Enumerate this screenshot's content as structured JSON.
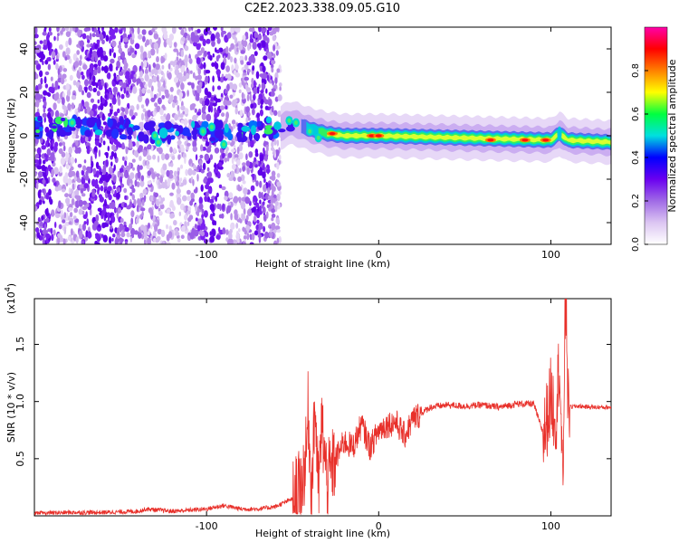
{
  "title": "C2E2.2023.338.09.05.G10",
  "chart_data": [
    {
      "type": "heatmap",
      "xlabel": "Height of straight line (km)",
      "ylabel": "Frequency (Hz)",
      "xlim": [
        -200,
        135
      ],
      "ylim": [
        -50,
        50
      ],
      "xticks": [
        -100,
        0,
        100
      ],
      "yticks": [
        -40,
        -20,
        0,
        20,
        40
      ],
      "colorbar": {
        "label": "Normalized spectral amplitude",
        "range": [
          0.0,
          1.0
        ],
        "ticks": [
          "0.0",
          "0.2",
          "0.4",
          "0.6",
          "0.8"
        ],
        "colors": [
          "#ffffff",
          "#dcc6f2",
          "#a06ae6",
          "#6a00f0",
          "#0000ff",
          "#00e0e0",
          "#00ff40",
          "#ffff00",
          "#ff8000",
          "#ff0000",
          "#ff00aa"
        ]
      },
      "noise_region_x": [
        -200,
        -57
      ],
      "band_centerline": [
        {
          "x": -200,
          "f": 4
        },
        {
          "x": -175,
          "f": 5
        },
        {
          "x": -150,
          "f": 3
        },
        {
          "x": -125,
          "f": 1
        },
        {
          "x": -100,
          "f": 2
        },
        {
          "x": -80,
          "f": 2
        },
        {
          "x": -57,
          "f": 4
        },
        {
          "x": -50,
          "f": 6
        },
        {
          "x": -40,
          "f": 3
        },
        {
          "x": -30,
          "f": 1
        },
        {
          "x": -20,
          "f": 0
        },
        {
          "x": 0,
          "f": 0
        },
        {
          "x": 50,
          "f": -1
        },
        {
          "x": 100,
          "f": -2
        },
        {
          "x": 105,
          "f": 1
        },
        {
          "x": 110,
          "f": -2
        },
        {
          "x": 135,
          "f": -3
        }
      ],
      "hotspots": [
        {
          "x": -27,
          "f": 1,
          "level": 0.9
        },
        {
          "x": -4,
          "f": 0,
          "level": 0.9
        },
        {
          "x": 0,
          "f": 0,
          "level": 0.85
        },
        {
          "x": 65,
          "f": -2,
          "level": 0.7
        },
        {
          "x": 85,
          "f": -2,
          "level": 0.75
        },
        {
          "x": 97,
          "f": -2,
          "level": 0.7
        }
      ]
    },
    {
      "type": "line",
      "xlabel": "Height of straight line (km)",
      "ylabel": "SNR (10 * v/v)",
      "y_multiplier": "(x10",
      "y_multiplier_exp": "4",
      "y_multiplier_close": ")",
      "xlim": [
        -200,
        135
      ],
      "ylim": [
        0,
        1.9
      ],
      "xticks": [
        -100,
        0,
        100
      ],
      "yticks": [
        0.5,
        1.0,
        1.5
      ],
      "ytick_labels": [
        "0.5",
        "1.0",
        "1.5"
      ],
      "color": "#e8302a",
      "points": [
        [
          -200,
          0.02
        ],
        [
          -180,
          0.03
        ],
        [
          -160,
          0.03
        ],
        [
          -140,
          0.04
        ],
        [
          -135,
          0.06
        ],
        [
          -120,
          0.04
        ],
        [
          -100,
          0.06
        ],
        [
          -90,
          0.09
        ],
        [
          -80,
          0.06
        ],
        [
          -70,
          0.06
        ],
        [
          -60,
          0.08
        ],
        [
          -50,
          0.15
        ],
        [
          -45,
          0.25
        ],
        [
          -42,
          0.55
        ],
        [
          -41,
          0.95
        ],
        [
          -39,
          0.15
        ],
        [
          -37,
          1.0
        ],
        [
          -35,
          0.2
        ],
        [
          -33,
          0.8
        ],
        [
          -30,
          0.3
        ],
        [
          -25,
          0.5
        ],
        [
          -20,
          0.65
        ],
        [
          -15,
          0.6
        ],
        [
          -10,
          0.8
        ],
        [
          -5,
          0.6
        ],
        [
          0,
          0.75
        ],
        [
          5,
          0.8
        ],
        [
          10,
          0.82
        ],
        [
          15,
          0.7
        ],
        [
          20,
          0.85
        ],
        [
          25,
          0.9
        ],
        [
          30,
          0.95
        ],
        [
          40,
          0.97
        ],
        [
          50,
          0.96
        ],
        [
          60,
          0.97
        ],
        [
          70,
          0.95
        ],
        [
          80,
          0.98
        ],
        [
          90,
          0.98
        ],
        [
          96,
          0.7
        ],
        [
          100,
          1.05
        ],
        [
          103,
          0.85
        ],
        [
          105,
          1.4
        ],
        [
          107,
          0.15
        ],
        [
          108,
          1.6
        ],
        [
          109,
          1.85
        ],
        [
          110,
          0.95
        ],
        [
          115,
          0.96
        ],
        [
          125,
          0.95
        ],
        [
          135,
          0.95
        ]
      ]
    }
  ]
}
